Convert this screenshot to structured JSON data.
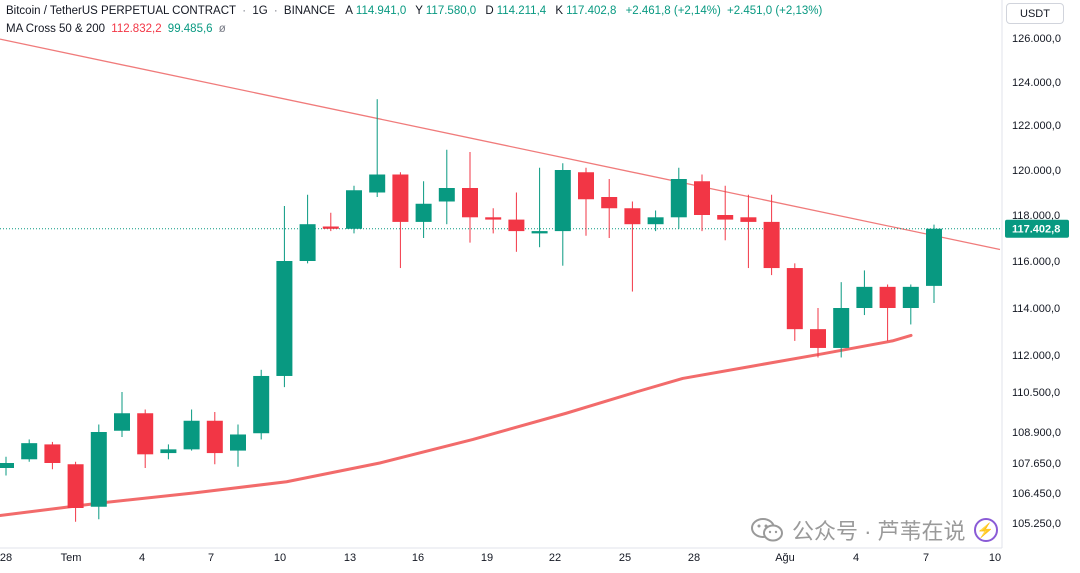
{
  "header": {
    "symbol_line": "Bitcoin / TetherUS PERPETUAL CONTRACT",
    "interval": "1G",
    "exchange": "BINANCE",
    "separator": "·",
    "ohlc": [
      {
        "label": "A",
        "value": "114.941,0"
      },
      {
        "label": "Y",
        "value": "117.580,0"
      },
      {
        "label": "D",
        "value": "114.211,4"
      },
      {
        "label": "K",
        "value": "117.402,8"
      }
    ],
    "change": "+2.461,8 (+2,14%)",
    "change2": "+2.451,0 (+2,13%)"
  },
  "indicator": {
    "name": "MA Cross 50 & 200",
    "ma_fast": "112.832,2",
    "ma_slow": "99.485,6",
    "extra": "ø"
  },
  "currency_button": "USDT",
  "watermark": {
    "text": "公众号 · 芦苇在说",
    "badge": "⚡"
  },
  "colors": {
    "up": "#089981",
    "down": "#f23645",
    "trendline": "#f07b7b",
    "ma_line": "#f26b6b",
    "last_price_bg": "#089981"
  },
  "chart_data": {
    "type": "candlestick",
    "title": "Bitcoin / TetherUS PERPETUAL CONTRACT · 1G · BINANCE",
    "y_axis_ticks": [
      "126.000,0",
      "124.000,0",
      "122.000,0",
      "120.000,0",
      "118.000,0",
      "116.000,0",
      "114.000,0",
      "112.000,0",
      "110.500,0",
      "108.900,0",
      "107.650,0",
      "106.450,0",
      "105.250,0"
    ],
    "y_axis_tick_values": [
      126000,
      124000,
      122000,
      120000,
      118000,
      116000,
      114000,
      112000,
      110500,
      108900,
      107650,
      106450,
      105250
    ],
    "x_axis_ticks": [
      {
        "label": "28",
        "day": -0.3
      },
      {
        "label": "Tem",
        "day": 2.8
      },
      {
        "label": "4",
        "day": 5.8
      },
      {
        "label": "7",
        "day": 8.8
      },
      {
        "label": "10",
        "day": 11.8
      },
      {
        "label": "13",
        "day": 14.8
      },
      {
        "label": "16",
        "day": 17.8
      },
      {
        "label": "19",
        "day": 20.8
      },
      {
        "label": "22",
        "day": 23.8
      },
      {
        "label": "25",
        "day": 26.8
      },
      {
        "label": "28",
        "day": 29.8
      },
      {
        "label": "Ağu",
        "day": 32.8
      },
      {
        "label": "4",
        "day": 35.8
      },
      {
        "label": "7",
        "day": 38.8
      },
      {
        "label": "10",
        "day": 41.8
      }
    ],
    "last_price": 117402.8,
    "last_price_label": "117.402,8",
    "candles": [
      {
        "o": 107450,
        "h": 107900,
        "l": 107150,
        "c": 107650
      },
      {
        "o": 107800,
        "h": 108600,
        "l": 107700,
        "c": 108450
      },
      {
        "o": 108400,
        "h": 108500,
        "l": 107400,
        "c": 107650
      },
      {
        "o": 107600,
        "h": 107700,
        "l": 105300,
        "c": 105850
      },
      {
        "o": 105900,
        "h": 109200,
        "l": 105400,
        "c": 108900
      },
      {
        "o": 108950,
        "h": 110500,
        "l": 108700,
        "c": 109650
      },
      {
        "o": 109650,
        "h": 109800,
        "l": 107450,
        "c": 108000
      },
      {
        "o": 108050,
        "h": 108400,
        "l": 107800,
        "c": 108200
      },
      {
        "o": 108200,
        "h": 109800,
        "l": 108150,
        "c": 109350
      },
      {
        "o": 109350,
        "h": 109700,
        "l": 107600,
        "c": 108050
      },
      {
        "o": 108150,
        "h": 109200,
        "l": 107500,
        "c": 108800
      },
      {
        "o": 108850,
        "h": 111400,
        "l": 108600,
        "c": 111150
      },
      {
        "o": 111150,
        "h": 118400,
        "l": 110700,
        "c": 116000
      },
      {
        "o": 116000,
        "h": 118900,
        "l": 115900,
        "c": 117600
      },
      {
        "o": 117500,
        "h": 118100,
        "l": 117300,
        "c": 117400
      },
      {
        "o": 117400,
        "h": 119300,
        "l": 117200,
        "c": 119100
      },
      {
        "o": 119000,
        "h": 123200,
        "l": 118800,
        "c": 119800
      },
      {
        "o": 119800,
        "h": 119900,
        "l": 115700,
        "c": 117700
      },
      {
        "o": 117700,
        "h": 119500,
        "l": 117000,
        "c": 118500
      },
      {
        "o": 118600,
        "h": 120900,
        "l": 117600,
        "c": 119200
      },
      {
        "o": 119200,
        "h": 120800,
        "l": 116800,
        "c": 117900
      },
      {
        "o": 117900,
        "h": 118300,
        "l": 117200,
        "c": 117800
      },
      {
        "o": 117800,
        "h": 119000,
        "l": 116400,
        "c": 117300
      },
      {
        "o": 117200,
        "h": 120100,
        "l": 116600,
        "c": 117300
      },
      {
        "o": 117300,
        "h": 120300,
        "l": 115800,
        "c": 120000
      },
      {
        "o": 119900,
        "h": 120100,
        "l": 117100,
        "c": 118700
      },
      {
        "o": 118800,
        "h": 119600,
        "l": 117000,
        "c": 118300
      },
      {
        "o": 118300,
        "h": 118600,
        "l": 114700,
        "c": 117600
      },
      {
        "o": 117600,
        "h": 118200,
        "l": 117300,
        "c": 117900
      },
      {
        "o": 117900,
        "h": 120100,
        "l": 117400,
        "c": 119600
      },
      {
        "o": 119500,
        "h": 119800,
        "l": 117300,
        "c": 118000
      },
      {
        "o": 118000,
        "h": 119300,
        "l": 116900,
        "c": 117800
      },
      {
        "o": 117900,
        "h": 118900,
        "l": 115700,
        "c": 117700
      },
      {
        "o": 117700,
        "h": 118900,
        "l": 115400,
        "c": 115700
      },
      {
        "o": 115700,
        "h": 115900,
        "l": 112600,
        "c": 113100
      },
      {
        "o": 113100,
        "h": 114000,
        "l": 111900,
        "c": 112300
      },
      {
        "o": 112300,
        "h": 115100,
        "l": 111900,
        "c": 114000
      },
      {
        "o": 114000,
        "h": 115600,
        "l": 113700,
        "c": 114900
      },
      {
        "o": 114900,
        "h": 115000,
        "l": 112600,
        "c": 114000
      },
      {
        "o": 114000,
        "h": 115000,
        "l": 113300,
        "c": 114900
      },
      {
        "o": 114941,
        "h": 117580,
        "l": 114211.4,
        "c": 117402.8
      }
    ],
    "ma_line": [
      {
        "day": -0.3,
        "v": 105550
      },
      {
        "day": 4,
        "v": 106050
      },
      {
        "day": 8,
        "v": 106450
      },
      {
        "day": 12,
        "v": 106900
      },
      {
        "day": 16,
        "v": 107650
      },
      {
        "day": 20,
        "v": 108600
      },
      {
        "day": 24,
        "v": 109650
      },
      {
        "day": 27,
        "v": 110500
      },
      {
        "day": 29,
        "v": 111050
      },
      {
        "day": 32,
        "v": 111550
      },
      {
        "day": 35,
        "v": 112050
      },
      {
        "day": 38,
        "v": 112600
      },
      {
        "day": 38.8,
        "v": 112832
      }
    ],
    "trendline": [
      {
        "day": -0.3,
        "v": 126050
      },
      {
        "day": 42,
        "v": 116500
      }
    ]
  }
}
